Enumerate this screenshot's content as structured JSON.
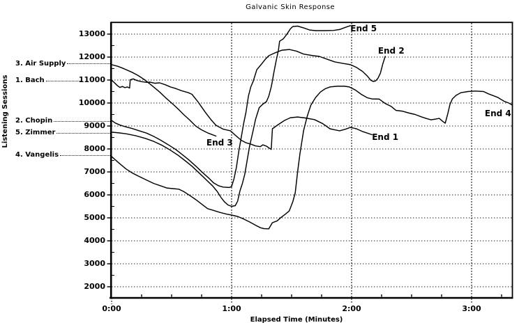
{
  "title": "Galvanic Skin Response",
  "axes": {
    "x_label": "Elapsed Time (Minutes)",
    "y_side_label": "Listening Sessions"
  },
  "colors": {
    "background": "#ffffff",
    "line": "#000000",
    "grid": "#1a1a1a",
    "text": "#000000"
  },
  "chart_data": {
    "type": "line",
    "title": "Galvanic Skin Response",
    "xlabel": "Elapsed Time (Minutes)",
    "ylabel": "Listening Sessions",
    "x_unit": "minutes",
    "xlim": [
      0,
      3.34
    ],
    "ylim": [
      1500,
      13500
    ],
    "grid": "dotted",
    "legend_position": "left-margin-leaders",
    "x_ticks": [
      {
        "t": 0,
        "label": "0:00"
      },
      {
        "t": 1,
        "label": "1:00"
      },
      {
        "t": 2,
        "label": "2:00"
      },
      {
        "t": 3,
        "label": "3:00"
      }
    ],
    "x_minor_tick_step": 0.25,
    "y_ticks": [
      2000,
      3000,
      4000,
      5000,
      6000,
      7000,
      8000,
      9000,
      10000,
      11000,
      12000,
      13000
    ],
    "y_minor_tick_step": 500,
    "series": [
      {
        "name": "3. Air Supply",
        "end_label": "End 3",
        "label_value": 11720,
        "short_leader": false,
        "end_label_pos": [
          0.9,
          8260
        ],
        "points": [
          [
            0,
            11670
          ],
          [
            0.05,
            11600
          ],
          [
            0.09,
            11520
          ],
          [
            0.13,
            11430
          ],
          [
            0.17,
            11340
          ],
          [
            0.22,
            11200
          ],
          [
            0.27,
            11030
          ],
          [
            0.31,
            10870
          ],
          [
            0.35,
            10700
          ],
          [
            0.4,
            10480
          ],
          [
            0.45,
            10230
          ],
          [
            0.5,
            10000
          ],
          [
            0.55,
            9760
          ],
          [
            0.6,
            9500
          ],
          [
            0.65,
            9260
          ],
          [
            0.7,
            9000
          ],
          [
            0.75,
            8830
          ],
          [
            0.8,
            8700
          ],
          [
            0.85,
            8600
          ],
          [
            0.87,
            8560
          ]
        ]
      },
      {
        "name": "1. Bach",
        "end_label": "End 1",
        "label_value": 10980,
        "short_leader": true,
        "end_label_pos": [
          2.28,
          8530
        ],
        "points": [
          [
            0,
            11000
          ],
          [
            0.02,
            10900
          ],
          [
            0.05,
            10750
          ],
          [
            0.07,
            10680
          ],
          [
            0.09,
            10720
          ],
          [
            0.11,
            10670
          ],
          [
            0.13,
            10700
          ],
          [
            0.15,
            10650
          ],
          [
            0.155,
            11010
          ],
          [
            0.18,
            11050
          ],
          [
            0.21,
            10980
          ],
          [
            0.25,
            10930
          ],
          [
            0.29,
            10900
          ],
          [
            0.32,
            10910
          ],
          [
            0.36,
            10860
          ],
          [
            0.4,
            10880
          ],
          [
            0.45,
            10790
          ],
          [
            0.49,
            10700
          ],
          [
            0.53,
            10640
          ],
          [
            0.58,
            10540
          ],
          [
            0.64,
            10450
          ],
          [
            0.67,
            10380
          ],
          [
            0.72,
            10050
          ],
          [
            0.78,
            9600
          ],
          [
            0.83,
            9260
          ],
          [
            0.87,
            9030
          ],
          [
            0.93,
            8860
          ],
          [
            0.99,
            8790
          ],
          [
            1.03,
            8600
          ],
          [
            1.08,
            8380
          ],
          [
            1.12,
            8270
          ],
          [
            1.16,
            8210
          ],
          [
            1.2,
            8130
          ],
          [
            1.24,
            8100
          ],
          [
            1.26,
            8180
          ],
          [
            1.29,
            8120
          ],
          [
            1.33,
            7980
          ],
          [
            1.34,
            8880
          ],
          [
            1.38,
            9030
          ],
          [
            1.44,
            9240
          ],
          [
            1.49,
            9360
          ],
          [
            1.55,
            9390
          ],
          [
            1.61,
            9350
          ],
          [
            1.69,
            9280
          ],
          [
            1.76,
            9100
          ],
          [
            1.82,
            8880
          ],
          [
            1.86,
            8830
          ],
          [
            1.9,
            8790
          ],
          [
            1.95,
            8860
          ],
          [
            1.99,
            8940
          ],
          [
            2.04,
            8880
          ],
          [
            2.09,
            8760
          ],
          [
            2.13,
            8690
          ],
          [
            2.17,
            8620
          ]
        ]
      },
      {
        "name": "2. Chopin",
        "end_label": "End 2",
        "label_value": 9220,
        "short_leader": false,
        "end_label_pos": [
          2.33,
          12270
        ],
        "points": [
          [
            0,
            9240
          ],
          [
            0.03,
            9130
          ],
          [
            0.07,
            9040
          ],
          [
            0.12,
            8960
          ],
          [
            0.17,
            8890
          ],
          [
            0.23,
            8790
          ],
          [
            0.29,
            8690
          ],
          [
            0.35,
            8550
          ],
          [
            0.41,
            8380
          ],
          [
            0.47,
            8190
          ],
          [
            0.53,
            7990
          ],
          [
            0.58,
            7790
          ],
          [
            0.64,
            7540
          ],
          [
            0.7,
            7260
          ],
          [
            0.75,
            7010
          ],
          [
            0.81,
            6730
          ],
          [
            0.85,
            6520
          ],
          [
            0.89,
            6400
          ],
          [
            0.93,
            6340
          ],
          [
            0.98,
            6320
          ],
          [
            1.0,
            6360
          ],
          [
            1.02,
            6700
          ],
          [
            1.04,
            7200
          ],
          [
            1.06,
            7900
          ],
          [
            1.08,
            8500
          ],
          [
            1.1,
            9100
          ],
          [
            1.12,
            9600
          ],
          [
            1.14,
            10300
          ],
          [
            1.16,
            10700
          ],
          [
            1.18,
            10950
          ],
          [
            1.21,
            11450
          ],
          [
            1.25,
            11700
          ],
          [
            1.28,
            11900
          ],
          [
            1.31,
            12060
          ],
          [
            1.36,
            12180
          ],
          [
            1.42,
            12300
          ],
          [
            1.48,
            12330
          ],
          [
            1.54,
            12260
          ],
          [
            1.6,
            12130
          ],
          [
            1.68,
            12060
          ],
          [
            1.73,
            12030
          ],
          [
            1.8,
            11900
          ],
          [
            1.86,
            11790
          ],
          [
            1.93,
            11720
          ],
          [
            1.99,
            11670
          ],
          [
            2.04,
            11550
          ],
          [
            2.09,
            11380
          ],
          [
            2.13,
            11180
          ],
          [
            2.16,
            10990
          ],
          [
            2.18,
            10940
          ],
          [
            2.2,
            10960
          ],
          [
            2.22,
            11080
          ],
          [
            2.24,
            11300
          ],
          [
            2.26,
            11700
          ],
          [
            2.28,
            12030
          ]
        ]
      },
      {
        "name": "5. Zimmer",
        "end_label": "End 5",
        "label_value": 8710,
        "short_leader": false,
        "end_label_pos": [
          2.1,
          13240
        ],
        "points": [
          [
            0,
            8730
          ],
          [
            0.06,
            8700
          ],
          [
            0.12,
            8660
          ],
          [
            0.2,
            8580
          ],
          [
            0.28,
            8460
          ],
          [
            0.35,
            8330
          ],
          [
            0.42,
            8160
          ],
          [
            0.48,
            7980
          ],
          [
            0.55,
            7740
          ],
          [
            0.61,
            7500
          ],
          [
            0.67,
            7250
          ],
          [
            0.73,
            6950
          ],
          [
            0.79,
            6650
          ],
          [
            0.84,
            6400
          ],
          [
            0.88,
            6150
          ],
          [
            0.91,
            5900
          ],
          [
            0.94,
            5700
          ],
          [
            0.97,
            5560
          ],
          [
            1.0,
            5500
          ],
          [
            1.03,
            5530
          ],
          [
            1.05,
            5720
          ],
          [
            1.07,
            6180
          ],
          [
            1.09,
            6500
          ],
          [
            1.11,
            6900
          ],
          [
            1.13,
            7520
          ],
          [
            1.15,
            8120
          ],
          [
            1.18,
            8820
          ],
          [
            1.2,
            9300
          ],
          [
            1.23,
            9800
          ],
          [
            1.26,
            9950
          ],
          [
            1.29,
            10060
          ],
          [
            1.31,
            10300
          ],
          [
            1.33,
            10700
          ],
          [
            1.34,
            10960
          ],
          [
            1.35,
            11270
          ],
          [
            1.37,
            11800
          ],
          [
            1.39,
            12300
          ],
          [
            1.4,
            12690
          ],
          [
            1.43,
            12790
          ],
          [
            1.46,
            12990
          ],
          [
            1.49,
            13230
          ],
          [
            1.51,
            13330
          ],
          [
            1.55,
            13350
          ],
          [
            1.6,
            13270
          ],
          [
            1.65,
            13180
          ],
          [
            1.7,
            13150
          ],
          [
            1.78,
            13150
          ],
          [
            1.85,
            13160
          ],
          [
            1.9,
            13200
          ],
          [
            1.94,
            13280
          ],
          [
            1.99,
            13370
          ]
        ]
      },
      {
        "name": "4. Vangelis",
        "end_label": "End 4",
        "label_value": 7730,
        "short_leader": false,
        "end_label_pos": [
          3.22,
          9560
        ],
        "points": [
          [
            0,
            7670
          ],
          [
            0.06,
            7390
          ],
          [
            0.12,
            7130
          ],
          [
            0.17,
            6960
          ],
          [
            0.23,
            6800
          ],
          [
            0.29,
            6650
          ],
          [
            0.35,
            6500
          ],
          [
            0.41,
            6390
          ],
          [
            0.46,
            6300
          ],
          [
            0.52,
            6270
          ],
          [
            0.56,
            6250
          ],
          [
            0.6,
            6150
          ],
          [
            0.65,
            5980
          ],
          [
            0.7,
            5800
          ],
          [
            0.75,
            5600
          ],
          [
            0.8,
            5400
          ],
          [
            0.84,
            5340
          ],
          [
            0.9,
            5240
          ],
          [
            0.96,
            5160
          ],
          [
            1.0,
            5120
          ],
          [
            1.05,
            5060
          ],
          [
            1.1,
            4950
          ],
          [
            1.15,
            4820
          ],
          [
            1.2,
            4680
          ],
          [
            1.24,
            4570
          ],
          [
            1.27,
            4530
          ],
          [
            1.31,
            4520
          ],
          [
            1.34,
            4790
          ],
          [
            1.38,
            4870
          ],
          [
            1.41,
            5010
          ],
          [
            1.45,
            5170
          ],
          [
            1.48,
            5300
          ],
          [
            1.51,
            5700
          ],
          [
            1.53,
            6090
          ],
          [
            1.55,
            7000
          ],
          [
            1.57,
            7800
          ],
          [
            1.6,
            8800
          ],
          [
            1.63,
            9420
          ],
          [
            1.66,
            9900
          ],
          [
            1.7,
            10240
          ],
          [
            1.74,
            10480
          ],
          [
            1.78,
            10620
          ],
          [
            1.82,
            10700
          ],
          [
            1.88,
            10730
          ],
          [
            1.94,
            10730
          ],
          [
            1.98,
            10700
          ],
          [
            2.03,
            10570
          ],
          [
            2.08,
            10380
          ],
          [
            2.13,
            10230
          ],
          [
            2.17,
            10180
          ],
          [
            2.23,
            10170
          ],
          [
            2.28,
            9980
          ],
          [
            2.33,
            9850
          ],
          [
            2.37,
            9680
          ],
          [
            2.42,
            9650
          ],
          [
            2.48,
            9560
          ],
          [
            2.53,
            9500
          ],
          [
            2.58,
            9400
          ],
          [
            2.62,
            9330
          ],
          [
            2.66,
            9270
          ],
          [
            2.7,
            9300
          ],
          [
            2.73,
            9330
          ],
          [
            2.76,
            9200
          ],
          [
            2.78,
            9120
          ],
          [
            2.8,
            9500
          ],
          [
            2.82,
            9940
          ],
          [
            2.84,
            10180
          ],
          [
            2.87,
            10330
          ],
          [
            2.91,
            10450
          ],
          [
            2.97,
            10500
          ],
          [
            3.03,
            10520
          ],
          [
            3.1,
            10500
          ],
          [
            3.14,
            10400
          ],
          [
            3.19,
            10300
          ],
          [
            3.22,
            10240
          ],
          [
            3.27,
            10080
          ],
          [
            3.31,
            10000
          ],
          [
            3.34,
            9910
          ]
        ]
      }
    ]
  }
}
